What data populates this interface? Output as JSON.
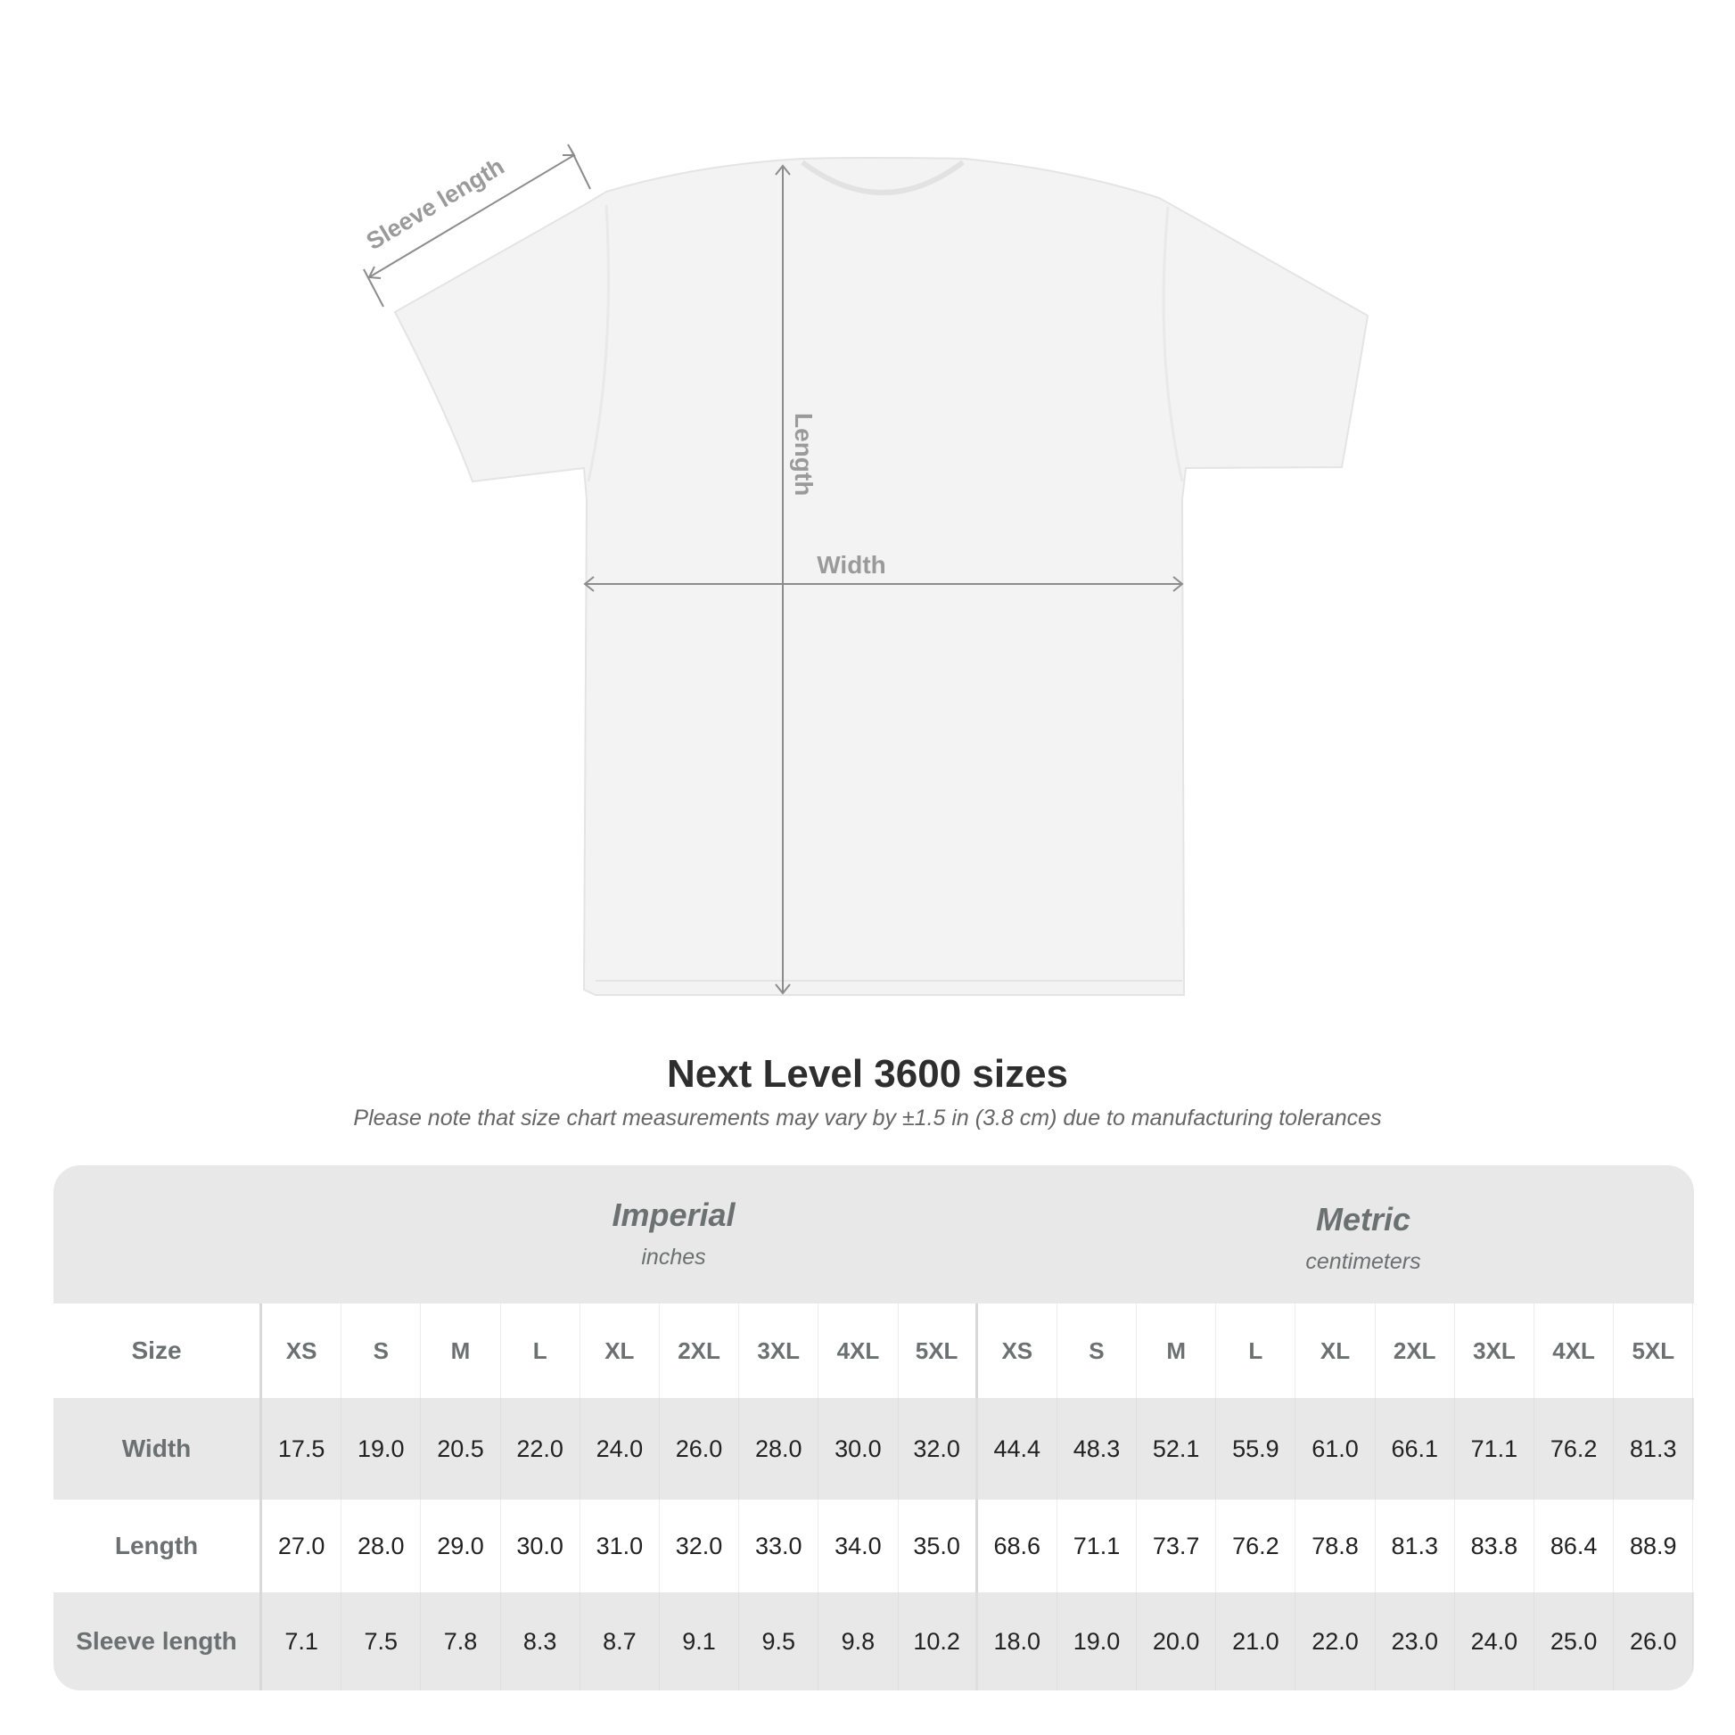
{
  "diagram": {
    "sleeve_label": "Sleeve length",
    "length_label": "Length",
    "width_label": "Width"
  },
  "title": "Next Level 3600 sizes",
  "subtitle": "Please note that size chart measurements may vary by ±1.5 in (3.8 cm) due to manufacturing tolerances",
  "table": {
    "imperial": {
      "name": "Imperial",
      "unit": "inches"
    },
    "metric": {
      "name": "Metric",
      "unit": "centimeters"
    },
    "rows": [
      {
        "label": "Size",
        "imperial": [
          "XS",
          "S",
          "M",
          "L",
          "XL",
          "2XL",
          "3XL",
          "4XL",
          "5XL"
        ],
        "metric": [
          "XS",
          "S",
          "M",
          "L",
          "XL",
          "2XL",
          "3XL",
          "4XL",
          "5XL"
        ]
      },
      {
        "label": "Width",
        "imperial": [
          "17.5",
          "19.0",
          "20.5",
          "22.0",
          "24.0",
          "26.0",
          "28.0",
          "30.0",
          "32.0"
        ],
        "metric": [
          "44.4",
          "48.3",
          "52.1",
          "55.9",
          "61.0",
          "66.1",
          "71.1",
          "76.2",
          "81.3"
        ]
      },
      {
        "label": "Length",
        "imperial": [
          "27.0",
          "28.0",
          "29.0",
          "30.0",
          "31.0",
          "32.0",
          "33.0",
          "34.0",
          "35.0"
        ],
        "metric": [
          "68.6",
          "71.1",
          "73.7",
          "76.2",
          "78.8",
          "81.3",
          "83.8",
          "86.4",
          "88.9"
        ]
      },
      {
        "label": "Sleeve length",
        "imperial": [
          "7.1",
          "7.5",
          "7.8",
          "8.3",
          "8.7",
          "9.1",
          "9.5",
          "9.8",
          "10.2"
        ],
        "metric": [
          "18.0",
          "19.0",
          "20.0",
          "21.0",
          "22.0",
          "23.0",
          "24.0",
          "25.0",
          "26.0"
        ]
      }
    ]
  }
}
